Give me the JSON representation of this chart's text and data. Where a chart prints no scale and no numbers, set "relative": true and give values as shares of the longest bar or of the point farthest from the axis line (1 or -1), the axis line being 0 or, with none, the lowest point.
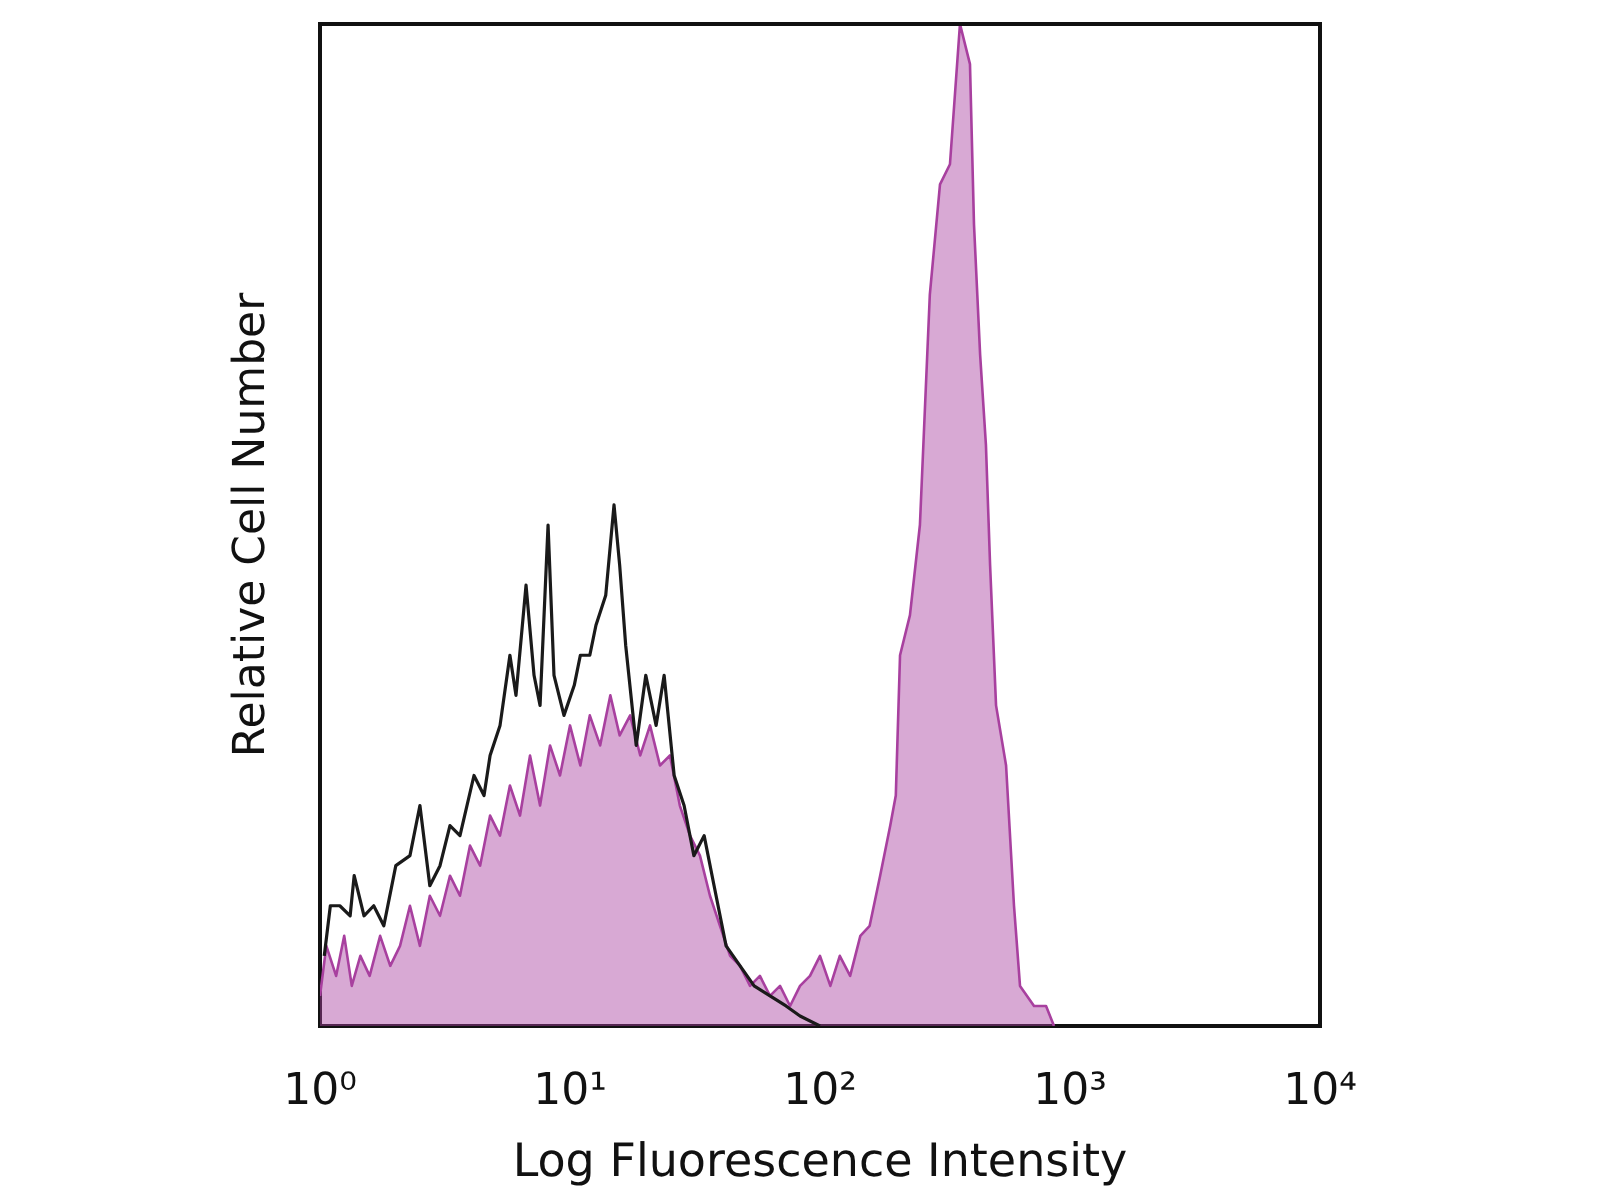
{
  "chart_data": {
    "type": "area",
    "xlabel": "Log Fluorescence Intensity",
    "ylabel": "Relative Cell Number",
    "log": "x",
    "xlim": [
      1,
      10000
    ],
    "xticks": [
      {
        "value": 1,
        "label": "10⁰"
      },
      {
        "value": 10,
        "label": "10¹"
      },
      {
        "value": 100,
        "label": "10²"
      },
      {
        "value": 1000,
        "label": "10³"
      },
      {
        "value": 10000,
        "label": "10⁴"
      }
    ],
    "relative": true,
    "tick_labels": "x",
    "grid": false,
    "legend": false,
    "series": [
      {
        "color": "#a8409f",
        "x": [
          1,
          1.06,
          1.16,
          1.25,
          1.34,
          1.45,
          1.58,
          1.74,
          1.91,
          2.09,
          2.29,
          2.51,
          2.75,
          3.02,
          3.31,
          3.63,
          3.98,
          4.37,
          4.79,
          5.25,
          5.75,
          6.31,
          6.92,
          7.59,
          8.32,
          9.12,
          10,
          11,
          12,
          13.2,
          14.5,
          15.8,
          17.4,
          19.1,
          20.9,
          22.9,
          25.1,
          27.5,
          30.2,
          33.1,
          36.3,
          39.8,
          43.7,
          47.9,
          52.5,
          57.5,
          63.1,
          69.2,
          75.9,
          83.2,
          91.2,
          100,
          110,
          120,
          132,
          145,
          158,
          174,
          191,
          201,
          209,
          229,
          251,
          275,
          302,
          331,
          363,
          398,
          413,
          437,
          461,
          479,
          506,
          555,
          597,
          631,
          718,
          802,
          863
        ],
        "values": [
          0.03,
          0.08,
          0.05,
          0.09,
          0.04,
          0.07,
          0.05,
          0.09,
          0.06,
          0.08,
          0.12,
          0.08,
          0.13,
          0.11,
          0.15,
          0.13,
          0.18,
          0.16,
          0.21,
          0.19,
          0.24,
          0.21,
          0.27,
          0.22,
          0.28,
          0.25,
          0.3,
          0.26,
          0.31,
          0.28,
          0.33,
          0.29,
          0.31,
          0.27,
          0.3,
          0.26,
          0.27,
          0.22,
          0.19,
          0.17,
          0.13,
          0.1,
          0.07,
          0.06,
          0.04,
          0.05,
          0.03,
          0.04,
          0.02,
          0.04,
          0.05,
          0.07,
          0.04,
          0.07,
          0.05,
          0.09,
          0.1,
          0.15,
          0.2,
          0.23,
          0.37,
          0.41,
          0.5,
          0.73,
          0.84,
          0.86,
          1,
          0.96,
          0.8,
          0.67,
          0.58,
          0.46,
          0.32,
          0.26,
          0.12,
          0.04,
          0.02,
          0.02,
          0
        ]
      },
      {
        "type": "line",
        "color": "#1a1a1a",
        "x": [
          1.04,
          1.1,
          1.2,
          1.32,
          1.37,
          1.5,
          1.64,
          1.8,
          2.01,
          2.29,
          2.51,
          2.75,
          3.02,
          3.31,
          3.63,
          4.13,
          4.53,
          4.79,
          5.25,
          5.75,
          6.08,
          6.67,
          7.18,
          7.59,
          8.17,
          8.63,
          9.46,
          10.4,
          11,
          12,
          12.7,
          13.9,
          15,
          15.8,
          16.7,
          18.4,
          20.1,
          22.1,
          23.8,
          26.1,
          28.6,
          31.3,
          34.4,
          37.7,
          42.1,
          47.9,
          54.5,
          63.1,
          73.1,
          83.2,
          100
        ],
        "values": [
          0.07,
          0.12,
          0.12,
          0.11,
          0.15,
          0.11,
          0.12,
          0.1,
          0.16,
          0.17,
          0.22,
          0.14,
          0.16,
          0.2,
          0.19,
          0.25,
          0.23,
          0.27,
          0.3,
          0.37,
          0.33,
          0.44,
          0.35,
          0.32,
          0.5,
          0.35,
          0.31,
          0.34,
          0.37,
          0.37,
          0.4,
          0.43,
          0.52,
          0.46,
          0.38,
          0.28,
          0.35,
          0.3,
          0.35,
          0.25,
          0.22,
          0.17,
          0.19,
          0.14,
          0.08,
          0.06,
          0.04,
          0.03,
          0.02,
          0.01,
          0
        ]
      }
    ]
  }
}
